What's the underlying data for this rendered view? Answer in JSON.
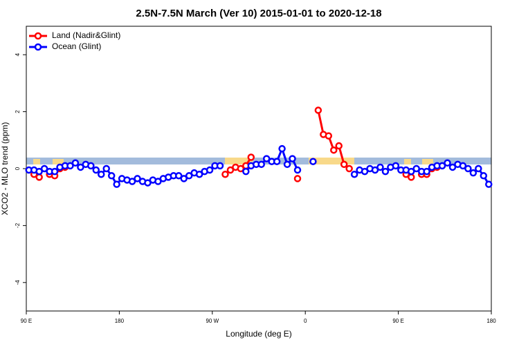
{
  "chart_data": {
    "type": "line",
    "title": "2.5N-7.5N March (Ver 10)   2015-01-01 to 2020-12-18",
    "x_label": "Longitude (deg E)",
    "y_label": "XCO2 - MLO trend (ppm)",
    "x": [
      92.5,
      97.5,
      102.5,
      107.5,
      112.5,
      117.5,
      122.5,
      127.5,
      132.5,
      137.5,
      142.5,
      147.5,
      152.5,
      157.5,
      162.5,
      167.5,
      172.5,
      177.5,
      182.5,
      187.5,
      192.5,
      197.5,
      202.5,
      207.5,
      212.5,
      217.5,
      222.5,
      227.5,
      232.5,
      237.5,
      242.5,
      247.5,
      252.5,
      257.5,
      262.5,
      267.5,
      272.5,
      277.5,
      282.5,
      287.5,
      292.5,
      297.5,
      302.5,
      307.5,
      312.5,
      317.5,
      322.5,
      327.5,
      332.5,
      337.5,
      342.5,
      347.5,
      352.5,
      357.5,
      362.5,
      367.5,
      372.5,
      377.5,
      382.5,
      387.5,
      392.5,
      397.5,
      402.5,
      407.5,
      412.5,
      417.5,
      422.5,
      427.5,
      432.5,
      437.5,
      442.5,
      447.5,
      452.5,
      457.5,
      462.5,
      467.5,
      472.5,
      477.5,
      482.5,
      487.5,
      492.5,
      497.5,
      502.5,
      507.5,
      512.5,
      517.5,
      522.5,
      527.5,
      532.5,
      537.5
    ],
    "series": [
      {
        "name": "Land (Nadir&Glint)",
        "color": "#ff0000",
        "values": [
          null,
          -0.2,
          -0.3,
          null,
          -0.2,
          -0.25,
          0.0,
          0.05,
          null,
          null,
          null,
          null,
          null,
          null,
          null,
          null,
          null,
          null,
          null,
          null,
          null,
          null,
          null,
          null,
          null,
          null,
          null,
          null,
          null,
          null,
          null,
          null,
          null,
          null,
          null,
          null,
          null,
          null,
          -0.2,
          -0.05,
          0.05,
          0.0,
          0.1,
          0.4,
          null,
          null,
          null,
          null,
          null,
          null,
          null,
          null,
          -0.35,
          null,
          null,
          null,
          2.05,
          1.2,
          1.15,
          0.65,
          0.8,
          0.15,
          0.0,
          null,
          null,
          null,
          null,
          null,
          null,
          null,
          null,
          null,
          null,
          -0.2,
          -0.3,
          null,
          -0.2,
          -0.2,
          0.0,
          0.05,
          null,
          null,
          null,
          null,
          null,
          null,
          null,
          null,
          null,
          null
        ]
      },
      {
        "name": "Ocean (Glint)",
        "color": "#0000ff",
        "values": [
          -0.05,
          -0.05,
          -0.1,
          0.0,
          -0.1,
          -0.1,
          0.05,
          0.1,
          0.1,
          0.2,
          0.05,
          0.15,
          0.1,
          -0.05,
          -0.2,
          0.0,
          -0.25,
          -0.55,
          -0.35,
          -0.4,
          -0.45,
          -0.35,
          -0.45,
          -0.5,
          -0.4,
          -0.45,
          -0.35,
          -0.3,
          -0.25,
          -0.25,
          -0.35,
          -0.25,
          -0.15,
          -0.2,
          -0.1,
          -0.05,
          0.1,
          0.1,
          null,
          null,
          null,
          null,
          -0.1,
          0.1,
          0.15,
          0.15,
          0.35,
          0.25,
          0.25,
          0.7,
          0.15,
          0.35,
          -0.05,
          null,
          null,
          0.25,
          null,
          null,
          null,
          null,
          null,
          null,
          null,
          -0.2,
          -0.05,
          -0.1,
          0.0,
          -0.05,
          0.05,
          -0.1,
          0.05,
          0.1,
          -0.05,
          -0.05,
          -0.1,
          0.0,
          -0.1,
          -0.1,
          0.05,
          0.1,
          0.1,
          0.2,
          0.05,
          0.15,
          0.1,
          0.0,
          -0.15,
          0.0,
          -0.25,
          -0.55
        ]
      }
    ],
    "xlim": [
      90,
      540
    ],
    "xticks": [
      {
        "value": 90,
        "label": "90 E"
      },
      {
        "value": 180,
        "label": "180"
      },
      {
        "value": 270,
        "label": "90 W"
      },
      {
        "value": 360,
        "label": "0"
      },
      {
        "value": 450,
        "label": "90 E"
      },
      {
        "value": 540,
        "label": "180"
      }
    ],
    "ylim": [
      -5,
      5
    ],
    "yticks": [
      -4,
      -2,
      0,
      2,
      4
    ],
    "legend": "top-left"
  }
}
